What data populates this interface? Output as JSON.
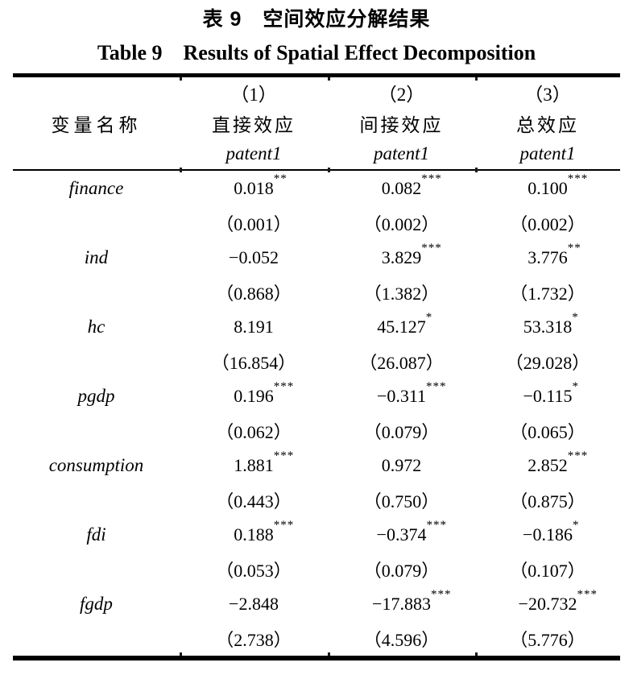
{
  "page": {
    "title_zh": "表 9　空间效应分解结果",
    "title_en": "Table 9　Results of Spatial Effect Decomposition"
  },
  "table": {
    "header": {
      "col1": "变量名称",
      "cols": [
        {
          "num": "（1）",
          "effect": "直接效应",
          "depvar": "patent1"
        },
        {
          "num": "（2）",
          "effect": "间接效应",
          "depvar": "patent1"
        },
        {
          "num": "（3）",
          "effect": "总效应",
          "depvar": "patent1"
        }
      ]
    },
    "rows": [
      {
        "variable": "finance",
        "cells": [
          {
            "coef": "0.018",
            "stars": "**",
            "se": "（0.001）"
          },
          {
            "coef": "0.082",
            "stars": "***",
            "se": "（0.002）"
          },
          {
            "coef": "0.100",
            "stars": "***",
            "se": "（0.002）"
          }
        ]
      },
      {
        "variable": "ind",
        "cells": [
          {
            "coef": "−0.052",
            "stars": "",
            "se": "（0.868）"
          },
          {
            "coef": "3.829",
            "stars": "***",
            "se": "（1.382）"
          },
          {
            "coef": "3.776",
            "stars": "**",
            "se": "（1.732）"
          }
        ]
      },
      {
        "variable": "hc",
        "cells": [
          {
            "coef": "8.191",
            "stars": "",
            "se": "（16.854）"
          },
          {
            "coef": "45.127",
            "stars": "*",
            "se": "（26.087）"
          },
          {
            "coef": "53.318",
            "stars": "*",
            "se": "（29.028）"
          }
        ]
      },
      {
        "variable": "pgdp",
        "cells": [
          {
            "coef": "0.196",
            "stars": "***",
            "se": "（0.062）"
          },
          {
            "coef": "−0.311",
            "stars": "***",
            "se": "（0.079）"
          },
          {
            "coef": "−0.115",
            "stars": "*",
            "se": "（0.065）"
          }
        ]
      },
      {
        "variable": "consumption",
        "cells": [
          {
            "coef": "1.881",
            "stars": "***",
            "se": "（0.443）"
          },
          {
            "coef": "0.972",
            "stars": "",
            "se": "（0.750）"
          },
          {
            "coef": "2.852",
            "stars": "***",
            "se": "（0.875）"
          }
        ]
      },
      {
        "variable": "fdi",
        "cells": [
          {
            "coef": "0.188",
            "stars": "***",
            "se": "（0.053）"
          },
          {
            "coef": "−0.374",
            "stars": "***",
            "se": "（0.079）"
          },
          {
            "coef": "−0.186",
            "stars": "*",
            "se": "（0.107）"
          }
        ]
      },
      {
        "variable": "fgdp",
        "cells": [
          {
            "coef": "−2.848",
            "stars": "",
            "se": "（2.738）"
          },
          {
            "coef": "−17.883",
            "stars": "***",
            "se": "（4.596）"
          },
          {
            "coef": "−20.732",
            "stars": "***",
            "se": "（5.776）"
          }
        ]
      }
    ]
  },
  "colors": {
    "background": "#ffffff",
    "text": "#000000",
    "rule": "#000000"
  }
}
